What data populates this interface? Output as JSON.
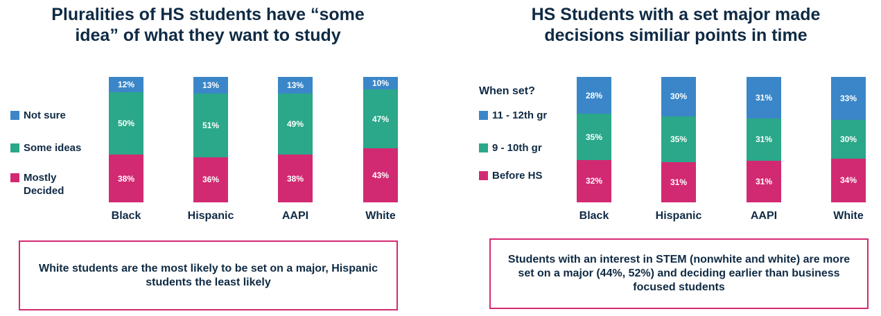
{
  "colors": {
    "blue": "#3b86c8",
    "green": "#2ba789",
    "pink": "#d22a72",
    "text": "#0f2a44",
    "border": "#d22a72"
  },
  "left": {
    "title_line1": "Pluralities of HS students have “some",
    "title_line2": "idea” of what they want to study",
    "legend": [
      "Not sure",
      "Some ideas",
      "Mostly Decided"
    ],
    "note": "White students are the most likely to be set on a major, Hispanic students the least likely"
  },
  "right": {
    "title_line1": "HS Students with a set major made",
    "title_line2": "decisions similiar points in time",
    "legend_title": "When set?",
    "legend": [
      "11 - 12th gr",
      "9 - 10th gr",
      "Before HS"
    ],
    "note": "Students with an interest in STEM (nonwhite and white) are more set on a major (44%, 52%) and deciding earlier than business focused students"
  },
  "chart_data": [
    {
      "type": "bar",
      "stacked": true,
      "title": "Pluralities of HS students have “some idea” of what they want to study",
      "categories": [
        "Black",
        "Hispanic",
        "AAPI",
        "White"
      ],
      "series": [
        {
          "name": "Mostly Decided",
          "color": "#d22a72",
          "values": [
            38,
            36,
            38,
            43
          ],
          "labels": [
            "38%",
            "36%",
            "38%",
            "43%"
          ]
        },
        {
          "name": "Some ideas",
          "color": "#2ba789",
          "values": [
            50,
            51,
            49,
            47
          ],
          "labels": [
            "50%",
            "51%",
            "49%",
            "47%"
          ]
        },
        {
          "name": "Not sure",
          "color": "#3b86c8",
          "values": [
            12,
            13,
            13,
            10
          ],
          "labels": [
            "12%",
            "13%",
            "13%",
            "10%"
          ]
        }
      ],
      "legend_position": "left",
      "grid": false
    },
    {
      "type": "bar",
      "stacked": true,
      "title": "HS Students with a set major made decisions similiar points in time",
      "legend_title": "When set?",
      "categories": [
        "Black",
        "Hispanic",
        "AAPI",
        "White"
      ],
      "series": [
        {
          "name": "Before HS",
          "color": "#d22a72",
          "values": [
            32,
            31,
            31,
            34
          ],
          "labels": [
            "32%",
            "31%",
            "31%",
            "34%"
          ]
        },
        {
          "name": "9 - 10th gr",
          "color": "#2ba789",
          "values": [
            35,
            35,
            31,
            30
          ],
          "labels": [
            "35%",
            "35%",
            "31%",
            "30%"
          ]
        },
        {
          "name": "11 - 12th gr",
          "color": "#3b86c8",
          "values": [
            28,
            30,
            31,
            33
          ],
          "labels": [
            "28%",
            "30%",
            "31%",
            "33%"
          ]
        }
      ],
      "legend_position": "left",
      "grid": false
    }
  ]
}
